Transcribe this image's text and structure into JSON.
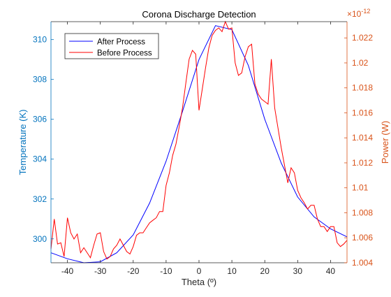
{
  "chart_data": {
    "type": "line",
    "title": "Corona Discharge Detection",
    "xlabel": "Theta (º)",
    "x_ticks": [
      "-40",
      "-30",
      "-20",
      "-10",
      "0",
      "10",
      "20",
      "30",
      "40"
    ],
    "xlim": [
      -45,
      45
    ],
    "left_axis": {
      "label": "Temperature (K)",
      "color": "#0072BD",
      "ylim": [
        298.8,
        310.9
      ],
      "ticks": [
        "300",
        "302",
        "304",
        "306",
        "308",
        "310"
      ]
    },
    "right_axis": {
      "label": "Power (W)",
      "color": "#D95319",
      "exponent": "×10",
      "exponent_power": "-12",
      "ylim": [
        1.004,
        1.0233
      ],
      "ticks": [
        "1.004",
        "1.006",
        "1.008",
        "1.01",
        "1.012",
        "1.014",
        "1.016",
        "1.018",
        "1.02",
        "1.022"
      ]
    },
    "grid": false,
    "legend_position": "top-left",
    "series": [
      {
        "name": "After Process",
        "axis": "left",
        "color": "#0000FF",
        "x": [
          -45,
          -40,
          -35,
          -30,
          -25,
          -20,
          -15,
          -10,
          -5,
          0,
          5,
          10,
          15,
          20,
          25,
          30,
          35,
          40,
          45
        ],
        "values": [
          299.3,
          299.0,
          298.8,
          298.85,
          299.3,
          300.2,
          301.8,
          303.9,
          306.4,
          309.0,
          310.7,
          310.5,
          308.7,
          306.0,
          303.8,
          302.1,
          301.1,
          300.5,
          300.1
        ]
      },
      {
        "name": "Before Process",
        "axis": "right",
        "color": "#FF0000",
        "x": [
          -45,
          -44,
          -43,
          -42,
          -41,
          -40,
          -39,
          -38,
          -37,
          -36,
          -35,
          -33,
          -32,
          -31,
          -30,
          -29,
          -28,
          -27,
          -26,
          -25,
          -24,
          -22,
          -21,
          -20,
          -19,
          -18,
          -17,
          -16,
          -15,
          -14,
          -13,
          -12,
          -11,
          -10,
          -9,
          -8,
          -7,
          -6,
          -5,
          -4,
          -3,
          -2,
          -1,
          0,
          1,
          2,
          3,
          4,
          5,
          6,
          7,
          8,
          9,
          10,
          11,
          12,
          13,
          14,
          15,
          16,
          17,
          18,
          19,
          20,
          21,
          22,
          23,
          24,
          25,
          26,
          27,
          28,
          29,
          30,
          31,
          32,
          33,
          34,
          35,
          36,
          37,
          38,
          39,
          40,
          41,
          42,
          43,
          44,
          45
        ],
        "values": [
          1.0051,
          1.0075,
          1.0055,
          1.0056,
          1.0045,
          1.0076,
          1.0064,
          1.0059,
          1.0063,
          1.0048,
          1.0052,
          1.0044,
          1.0054,
          1.0063,
          1.0064,
          1.0049,
          1.0043,
          1.0045,
          1.0051,
          1.0054,
          1.0059,
          1.0049,
          1.0047,
          1.0053,
          1.0062,
          1.0064,
          1.0064,
          1.0068,
          1.0072,
          1.0074,
          1.0076,
          1.0081,
          1.0081,
          1.0102,
          1.0112,
          1.0126,
          1.0135,
          1.0149,
          1.0164,
          1.0184,
          1.0203,
          1.021,
          1.0207,
          1.0162,
          1.0179,
          1.0196,
          1.0212,
          1.0222,
          1.0226,
          1.0228,
          1.0225,
          1.0233,
          1.0227,
          1.0228,
          1.02,
          1.019,
          1.0192,
          1.0205,
          1.0213,
          1.0215,
          1.0183,
          1.0175,
          1.0171,
          1.0169,
          1.0167,
          1.0203,
          1.0164,
          1.0148,
          1.0132,
          1.0118,
          1.0104,
          1.0116,
          1.0112,
          1.0098,
          1.0092,
          1.0088,
          1.0083,
          1.0086,
          1.0086,
          1.0075,
          1.0069,
          1.0069,
          1.0065,
          1.0069,
          1.0069,
          1.0056,
          1.0053,
          1.0055,
          1.0058
        ]
      }
    ]
  }
}
